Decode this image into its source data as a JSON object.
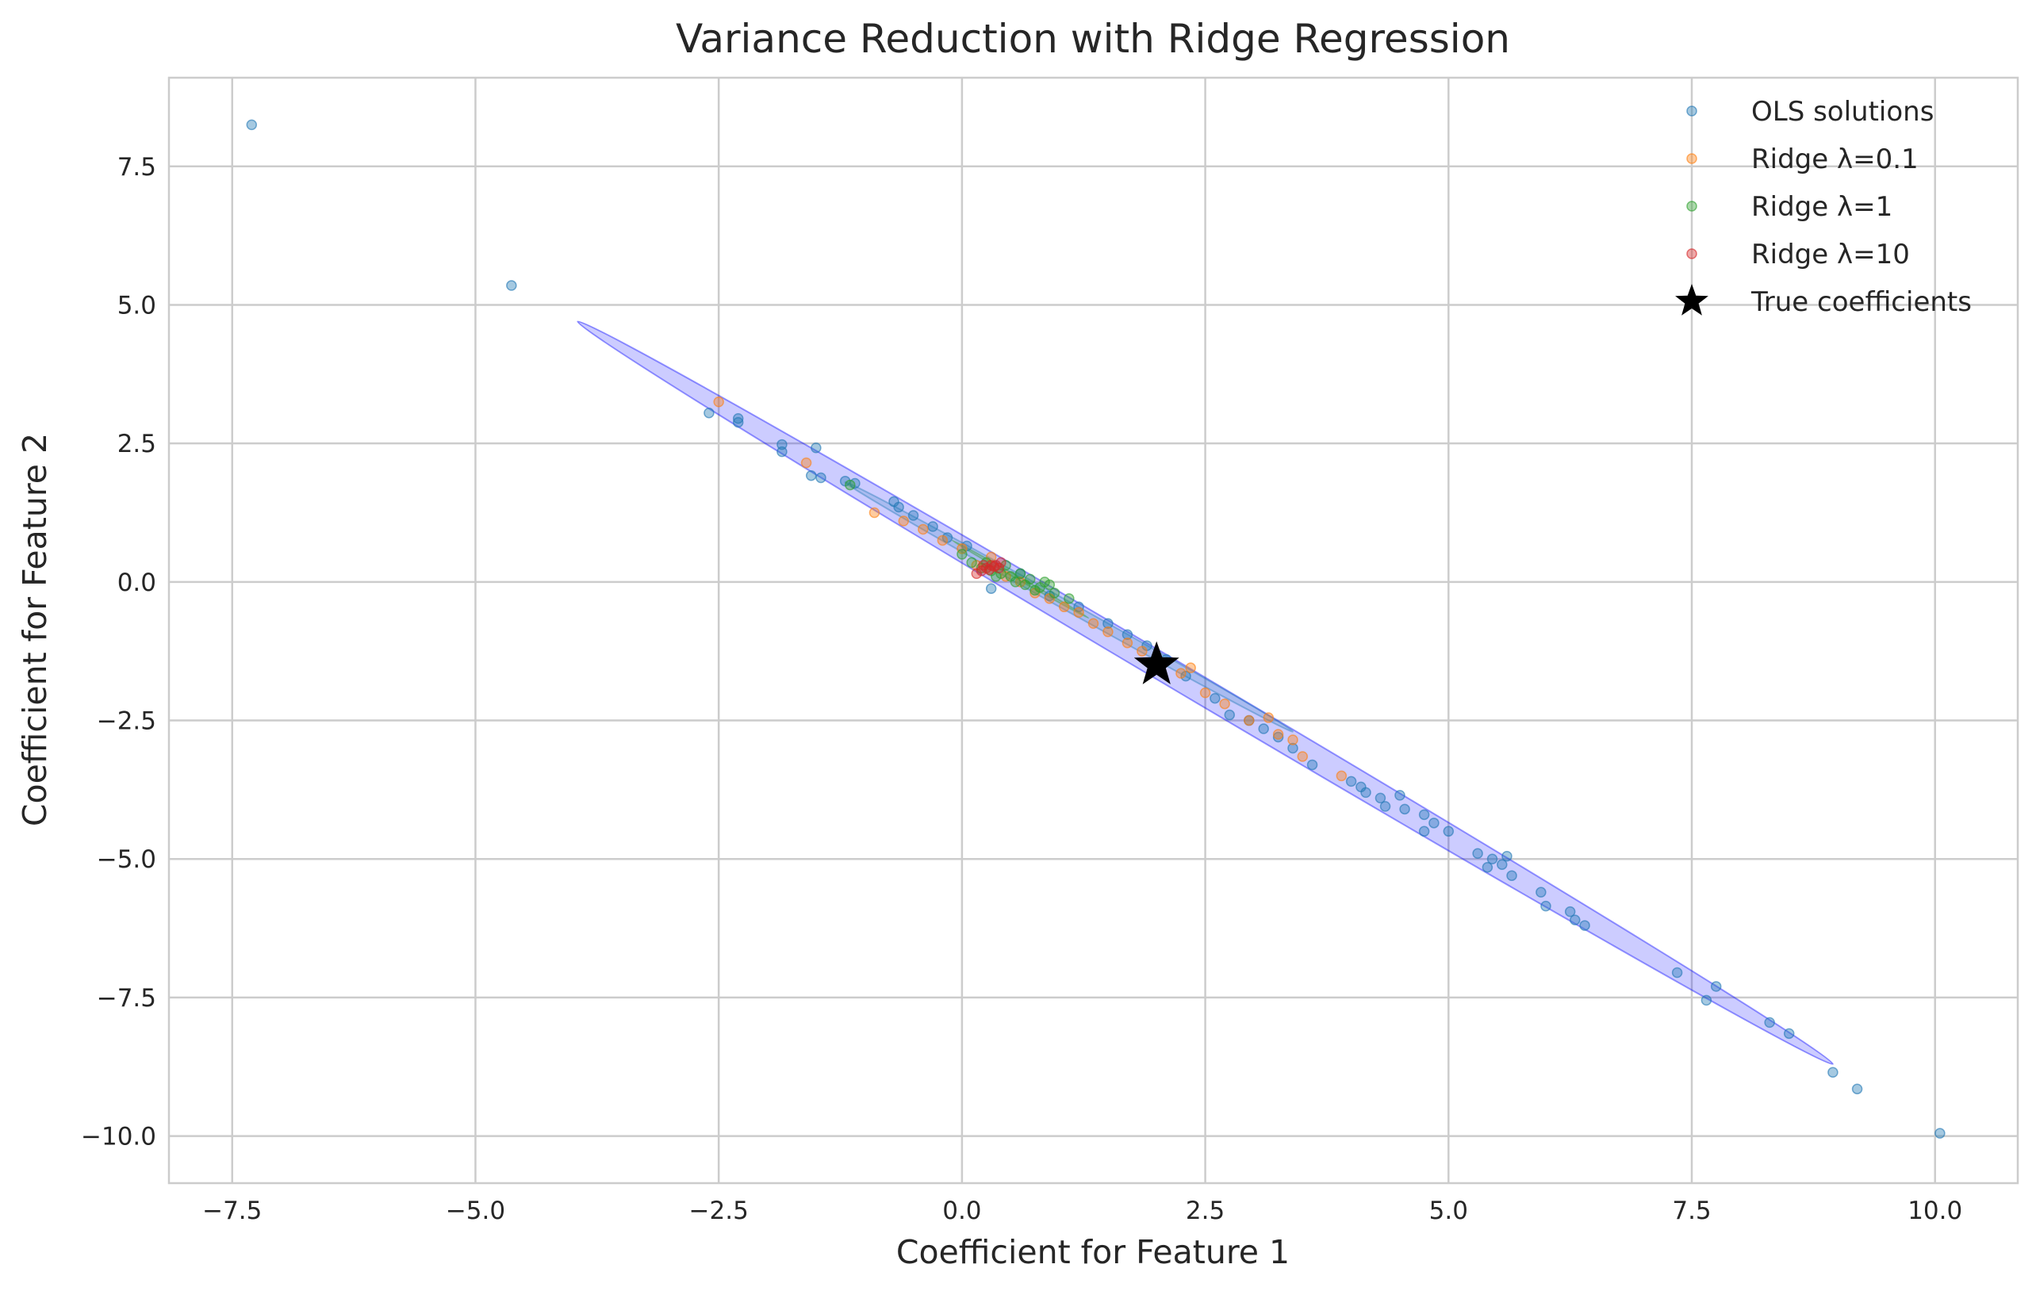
{
  "chart_data": {
    "type": "scatter",
    "title": "Variance Reduction with Ridge Regression",
    "xlabel": "Coefficient for Feature 1",
    "ylabel": "Coefficient for Feature 2",
    "xlim": [
      -8.15,
      10.85
    ],
    "ylim": [
      -10.85,
      9.1
    ],
    "x_ticks": [
      -7.5,
      -5.0,
      -2.5,
      0.0,
      2.5,
      5.0,
      7.5,
      10.0
    ],
    "x_tick_labels": [
      "−7.5",
      "−5.0",
      "−2.5",
      "0.0",
      "2.5",
      "5.0",
      "7.5",
      "10.0"
    ],
    "y_ticks": [
      7.5,
      5.0,
      2.5,
      0.0,
      -2.5,
      -5.0,
      -7.5,
      -10.0
    ],
    "y_tick_labels": [
      "7.5",
      "5.0",
      "2.5",
      "0.0",
      "−2.5",
      "−5.0",
      "−7.5",
      "−10.0"
    ],
    "grid": true,
    "legend_position": "top-right",
    "series": [
      {
        "name": "OLS solutions",
        "color": "#1f77b4",
        "marker": "circle",
        "points": [
          [
            -7.3,
            8.25
          ],
          [
            -4.63,
            5.35
          ],
          [
            -2.6,
            3.05
          ],
          [
            -2.3,
            2.95
          ],
          [
            -2.3,
            2.88
          ],
          [
            -1.85,
            2.48
          ],
          [
            -1.85,
            2.35
          ],
          [
            -1.5,
            2.42
          ],
          [
            -1.55,
            1.92
          ],
          [
            -1.45,
            1.88
          ],
          [
            -1.2,
            1.82
          ],
          [
            -1.1,
            1.78
          ],
          [
            -0.7,
            1.45
          ],
          [
            -0.65,
            1.35
          ],
          [
            -0.5,
            1.2
          ],
          [
            -0.3,
            1.0
          ],
          [
            -0.15,
            0.8
          ],
          [
            0.05,
            0.65
          ],
          [
            0.3,
            -0.12
          ],
          [
            0.6,
            0.15
          ],
          [
            0.9,
            -0.25
          ],
          [
            1.2,
            -0.45
          ],
          [
            1.5,
            -0.75
          ],
          [
            1.7,
            -0.95
          ],
          [
            1.9,
            -1.15
          ],
          [
            2.1,
            -1.4
          ],
          [
            2.3,
            -1.7
          ],
          [
            2.6,
            -2.1
          ],
          [
            2.75,
            -2.4
          ],
          [
            2.95,
            -2.5
          ],
          [
            3.1,
            -2.65
          ],
          [
            3.25,
            -2.8
          ],
          [
            3.4,
            -3.0
          ],
          [
            3.6,
            -3.3
          ],
          [
            4.0,
            -3.6
          ],
          [
            4.1,
            -3.7
          ],
          [
            4.15,
            -3.8
          ],
          [
            4.3,
            -3.9
          ],
          [
            4.35,
            -4.05
          ],
          [
            4.5,
            -3.85
          ],
          [
            4.55,
            -4.1
          ],
          [
            4.75,
            -4.2
          ],
          [
            4.75,
            -4.5
          ],
          [
            4.85,
            -4.35
          ],
          [
            5.0,
            -4.5
          ],
          [
            5.3,
            -4.9
          ],
          [
            5.4,
            -5.15
          ],
          [
            5.45,
            -5.0
          ],
          [
            5.55,
            -5.1
          ],
          [
            5.6,
            -4.95
          ],
          [
            5.65,
            -5.3
          ],
          [
            5.95,
            -5.6
          ],
          [
            6.0,
            -5.85
          ],
          [
            6.25,
            -5.95
          ],
          [
            6.3,
            -6.1
          ],
          [
            6.4,
            -6.2
          ],
          [
            7.35,
            -7.05
          ],
          [
            7.65,
            -7.55
          ],
          [
            7.75,
            -7.3
          ],
          [
            8.3,
            -7.95
          ],
          [
            8.5,
            -8.15
          ],
          [
            8.95,
            -8.85
          ],
          [
            9.2,
            -9.15
          ],
          [
            10.05,
            -9.95
          ]
        ]
      },
      {
        "name": "Ridge λ=0.1",
        "color": "#ff7f0e",
        "marker": "circle",
        "points": [
          [
            -2.5,
            3.25
          ],
          [
            -1.6,
            2.15
          ],
          [
            -0.9,
            1.25
          ],
          [
            -0.6,
            1.1
          ],
          [
            -0.4,
            0.95
          ],
          [
            -0.2,
            0.75
          ],
          [
            0.0,
            0.6
          ],
          [
            0.15,
            0.3
          ],
          [
            0.3,
            0.45
          ],
          [
            0.45,
            0.1
          ],
          [
            0.6,
            0.0
          ],
          [
            0.75,
            -0.2
          ],
          [
            0.9,
            -0.3
          ],
          [
            1.05,
            -0.45
          ],
          [
            1.2,
            -0.55
          ],
          [
            1.35,
            -0.75
          ],
          [
            1.5,
            -0.9
          ],
          [
            1.7,
            -1.1
          ],
          [
            1.85,
            -1.25
          ],
          [
            2.05,
            -1.5
          ],
          [
            2.25,
            -1.65
          ],
          [
            2.35,
            -1.55
          ],
          [
            2.5,
            -2.0
          ],
          [
            2.7,
            -2.2
          ],
          [
            2.95,
            -2.5
          ],
          [
            3.15,
            -2.45
          ],
          [
            3.25,
            -2.75
          ],
          [
            3.4,
            -2.85
          ],
          [
            3.5,
            -3.15
          ],
          [
            3.9,
            -3.5
          ]
        ]
      },
      {
        "name": "Ridge λ=1",
        "color": "#2ca02c",
        "marker": "circle",
        "points": [
          [
            -1.15,
            1.75
          ],
          [
            0.0,
            0.5
          ],
          [
            0.1,
            0.35
          ],
          [
            0.2,
            0.25
          ],
          [
            0.3,
            0.2
          ],
          [
            0.4,
            0.15
          ],
          [
            0.5,
            0.1
          ],
          [
            0.55,
            0.0
          ],
          [
            0.65,
            -0.05
          ],
          [
            0.7,
            0.05
          ],
          [
            0.8,
            -0.1
          ],
          [
            0.85,
            0.0
          ],
          [
            0.95,
            -0.2
          ],
          [
            1.1,
            -0.3
          ],
          [
            0.45,
            0.3
          ],
          [
            0.35,
            0.1
          ],
          [
            0.25,
            0.35
          ],
          [
            0.6,
            0.15
          ],
          [
            0.75,
            -0.15
          ],
          [
            0.9,
            -0.05
          ]
        ]
      },
      {
        "name": "Ridge λ=10",
        "color": "#d62728",
        "marker": "circle",
        "points": [
          [
            0.2,
            0.2
          ],
          [
            0.25,
            0.25
          ],
          [
            0.3,
            0.3
          ],
          [
            0.35,
            0.3
          ],
          [
            0.4,
            0.35
          ],
          [
            0.15,
            0.15
          ],
          [
            0.28,
            0.22
          ],
          [
            0.33,
            0.28
          ],
          [
            0.22,
            0.3
          ],
          [
            0.38,
            0.25
          ]
        ]
      },
      {
        "name": "True coefficients",
        "color": "#000000",
        "marker": "star",
        "points": [
          [
            2.0,
            -1.5
          ]
        ]
      }
    ],
    "ellipses": [
      {
        "color": "#0000ff",
        "center": [
          2.5,
          -2.0
        ],
        "end": [
          -3.95,
          4.7
        ]
      },
      {
        "color": "#1f77b4",
        "center": [
          1.1,
          -0.45
        ],
        "end": [
          -1.2,
          1.8
        ]
      },
      {
        "color": "#2ca02c",
        "center": [
          0.6,
          0.05
        ],
        "end": [
          -0.1,
          0.75
        ]
      }
    ]
  }
}
